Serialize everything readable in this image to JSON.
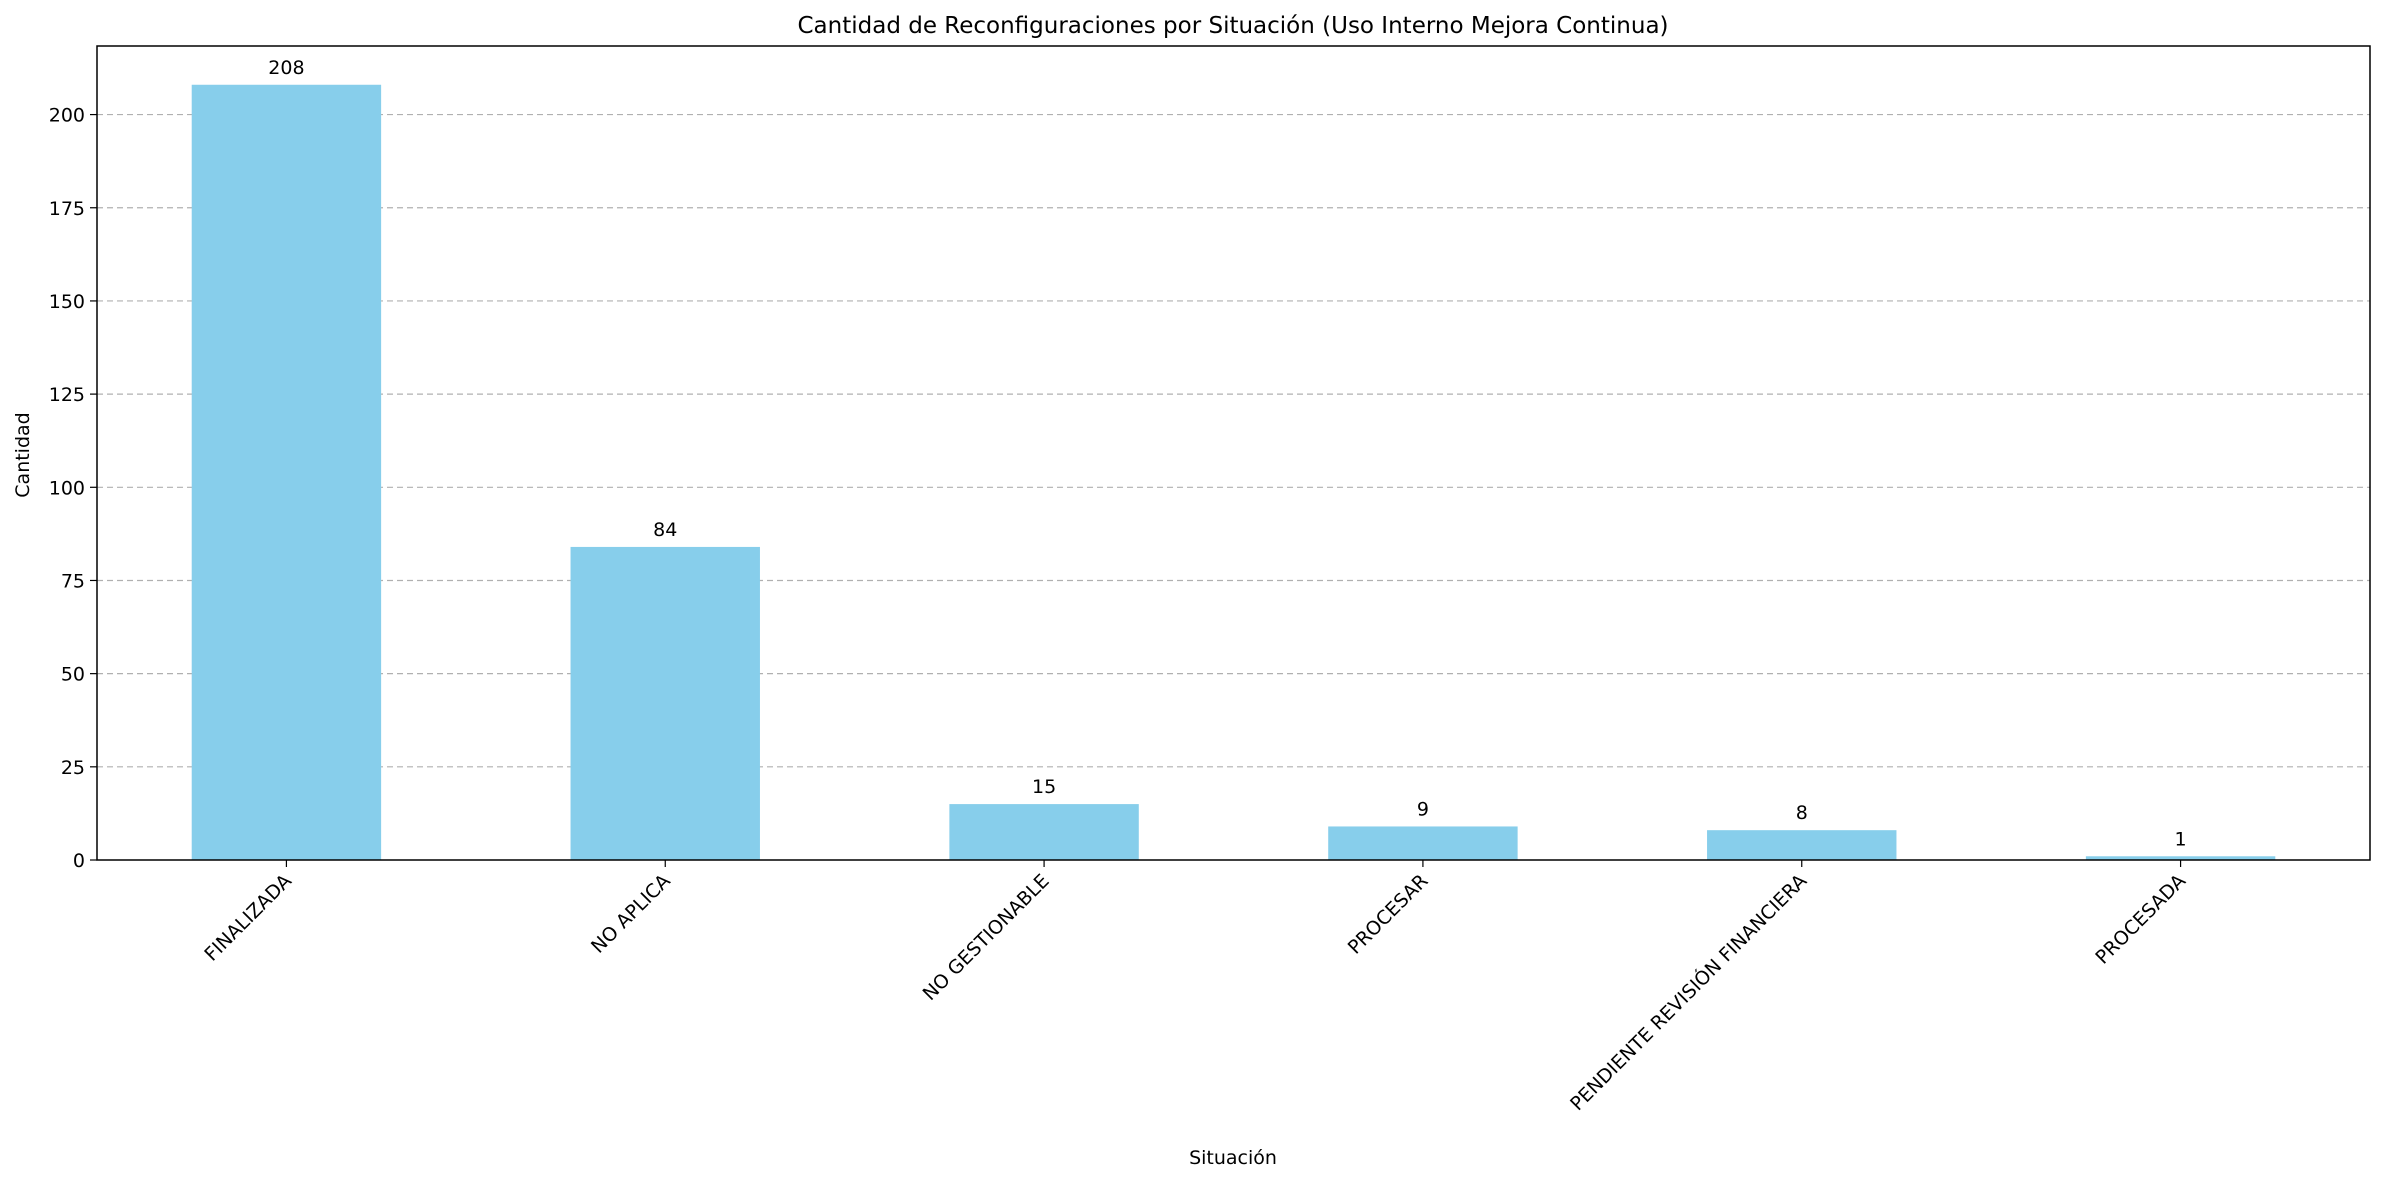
{
  "chart_data": {
    "type": "bar",
    "title": "Cantidad de Reconfiguraciones por Situación (Uso Interno Mejora Continua)",
    "xlabel": "Situación",
    "ylabel": "Cantidad",
    "categories": [
      "FINALIZADA",
      "NO APLICA",
      "NO GESTIONABLE",
      "PROCESAR",
      "PENDIENTE REVISIÓN FINANCIERA",
      "PROCESADA"
    ],
    "values": [
      208,
      84,
      15,
      9,
      8,
      1
    ],
    "ylim": [
      0,
      218.4
    ],
    "yticks": [
      0,
      25,
      50,
      75,
      100,
      125,
      150,
      175,
      200
    ],
    "grid": "y, dashed",
    "legend": "none",
    "bar_color": "#87CEEB",
    "grid_color": "#b0b0b0",
    "x_tick_rotation": -45
  }
}
